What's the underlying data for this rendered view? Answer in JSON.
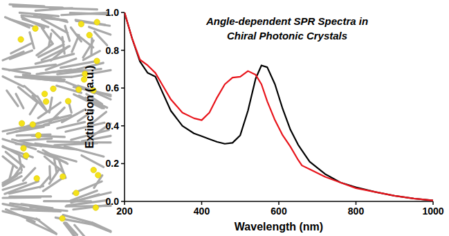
{
  "chart_data": {
    "type": "line",
    "title": "Angle-dependent SPR Spectra in Chiral Photonic Crystals",
    "x_label": "Wavelength (nm)",
    "y_label": "Extinction (a.u.)",
    "x": [
      200,
      220,
      240,
      260,
      280,
      300,
      320,
      350,
      380,
      400,
      420,
      440,
      460,
      480,
      500,
      520,
      540,
      555,
      570,
      590,
      610,
      630,
      650,
      660,
      680,
      720,
      760,
      800,
      850,
      900,
      950,
      1000
    ],
    "series": [
      {
        "color": "#000000",
        "values": [
          1.0,
          0.86,
          0.74,
          0.68,
          0.66,
          0.57,
          0.48,
          0.4,
          0.36,
          0.345,
          0.33,
          0.315,
          0.305,
          0.31,
          0.35,
          0.48,
          0.65,
          0.72,
          0.71,
          0.62,
          0.49,
          0.38,
          0.3,
          0.27,
          0.21,
          0.145,
          0.1,
          0.075,
          0.05,
          0.03,
          0.015,
          0.005
        ]
      },
      {
        "color": "#e8141b",
        "values": [
          1.0,
          0.86,
          0.75,
          0.72,
          0.68,
          0.61,
          0.54,
          0.47,
          0.44,
          0.43,
          0.47,
          0.55,
          0.62,
          0.655,
          0.66,
          0.69,
          0.67,
          0.62,
          0.53,
          0.43,
          0.35,
          0.29,
          0.22,
          0.19,
          0.17,
          0.13,
          0.1,
          0.07,
          0.05,
          0.03,
          0.015,
          0.005
        ]
      }
    ],
    "xlim": [
      200,
      1000
    ],
    "xticks": [
      200,
      400,
      600,
      800,
      1000
    ],
    "ylim": [
      0,
      1
    ],
    "yticks": [
      {
        "value": 0,
        "label": "0.0"
      },
      {
        "value": 0.2,
        "label": "0.2"
      },
      {
        "value": 0.4,
        "label": "0.4"
      },
      {
        "value": 0.6,
        "label": "0.6"
      },
      {
        "value": 0.8,
        "label": "0.8"
      },
      {
        "value": 1,
        "label": "1.0"
      }
    ],
    "grid": false
  }
}
